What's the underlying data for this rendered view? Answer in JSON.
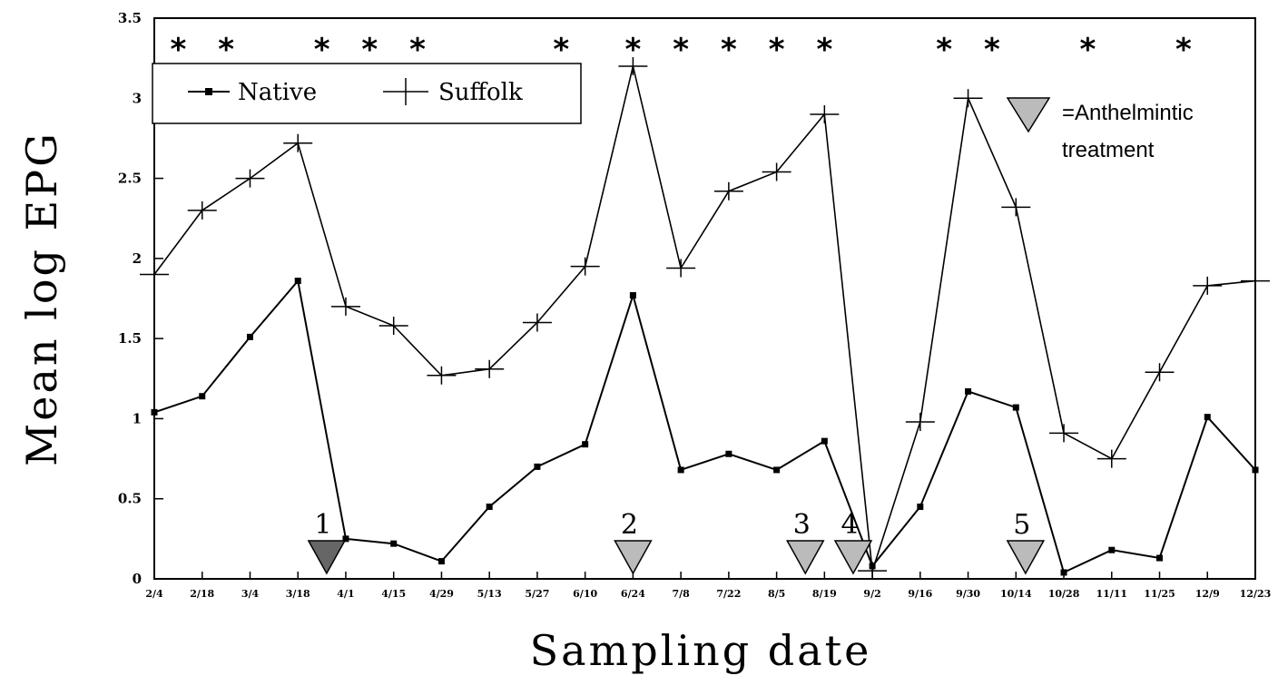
{
  "chart_data": {
    "type": "line",
    "title": "",
    "xlabel": "Sampling date",
    "ylabel": "Mean log EPG",
    "ylim": [
      0,
      3.5
    ],
    "y_ticks": [
      "0",
      "0.5",
      "1",
      "1.5",
      "2",
      "2.5",
      "3",
      "3.5"
    ],
    "y_tick_values": [
      0,
      0.5,
      1,
      1.5,
      2,
      2.5,
      3,
      3.5
    ],
    "categories": [
      "2/4",
      "2/18",
      "3/4",
      "3/18",
      "4/1",
      "4/15",
      "4/29",
      "5/13",
      "5/27",
      "6/10",
      "6/24",
      "7/8",
      "7/22",
      "8/5",
      "8/19",
      "9/2",
      "9/16",
      "9/30",
      "10/14",
      "10/28",
      "11/11",
      "11/25",
      "12/9",
      "12/23"
    ],
    "series": [
      {
        "name": "Native",
        "marker": "square",
        "values": [
          1.04,
          1.14,
          1.51,
          1.86,
          0.25,
          0.22,
          0.11,
          0.45,
          0.7,
          0.84,
          1.77,
          0.68,
          0.78,
          0.68,
          0.86,
          0.08,
          0.45,
          1.17,
          1.07,
          0.04,
          0.18,
          0.13,
          1.01,
          0.68
        ]
      },
      {
        "name": "Suffolk",
        "marker": "plus",
        "values": [
          1.9,
          2.3,
          2.5,
          2.72,
          1.7,
          1.58,
          1.27,
          1.31,
          1.6,
          1.95,
          3.2,
          1.94,
          2.42,
          2.54,
          2.9,
          0.05,
          0.98,
          3.0,
          2.32,
          0.91,
          0.75,
          1.29,
          1.83,
          1.86
        ]
      }
    ],
    "significance_marker": "*",
    "significant_positions": [
      0.5,
      1.5,
      3.5,
      4.5,
      5.5,
      8.5,
      10,
      11,
      12,
      13,
      14,
      16.5,
      17.5,
      19.5,
      21.5
    ],
    "treatments": [
      {
        "label": "1",
        "position": 3.6,
        "color": "#666666"
      },
      {
        "label": "2",
        "position": 10,
        "color": "#bbbbbb"
      },
      {
        "label": "3",
        "position": 13.6,
        "color": "#bbbbbb"
      },
      {
        "label": "4",
        "position": 14.6,
        "color": "#bbbbbb"
      },
      {
        "label": "5",
        "position": 18.2,
        "color": "#bbbbbb"
      }
    ],
    "legend": {
      "placement": "top-left",
      "entries": [
        "Native",
        "Suffolk"
      ]
    },
    "annotation": {
      "symbol_color": "#bbbbbb",
      "line1": "=Anthelmintic",
      "line2": "treatment"
    },
    "grid": false
  }
}
